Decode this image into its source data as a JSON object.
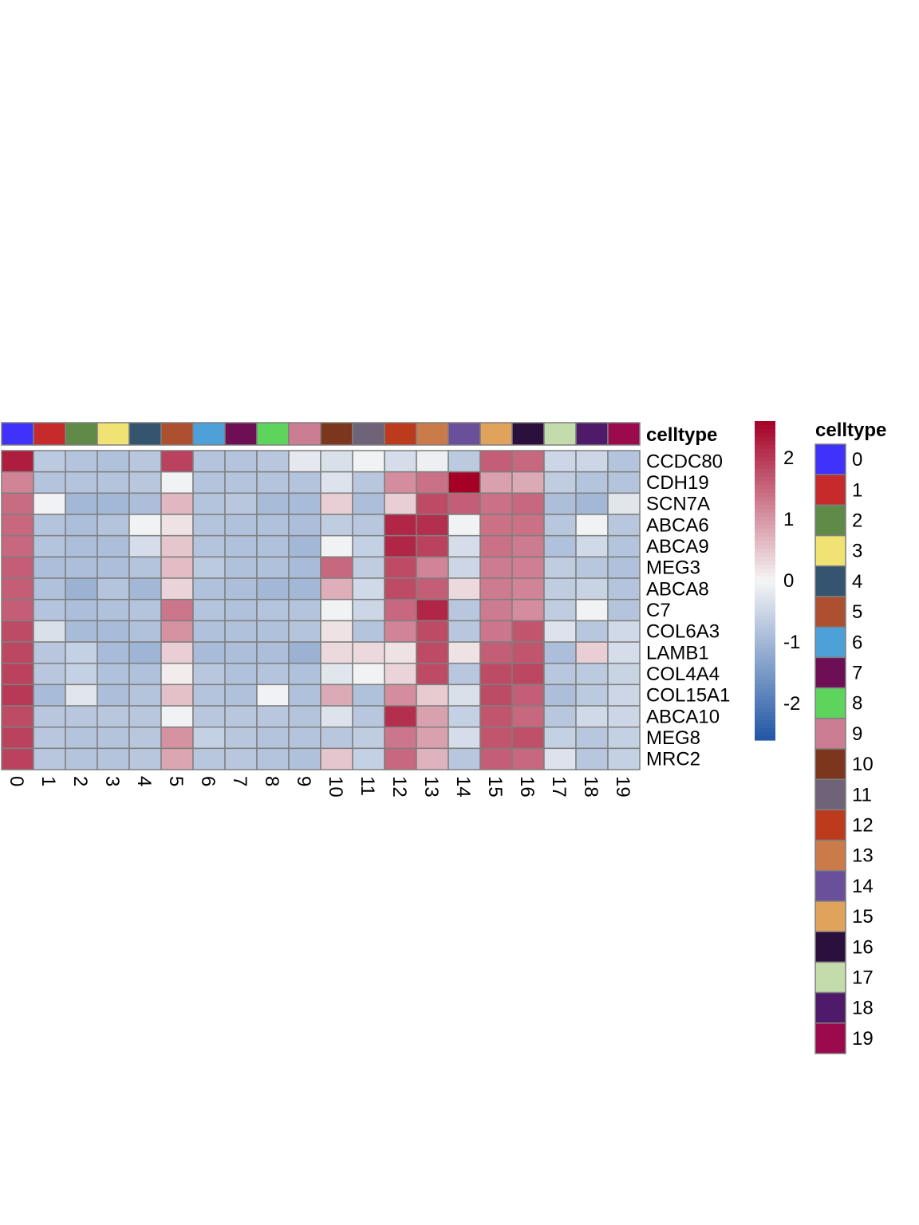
{
  "chart_data": {
    "type": "heatmap",
    "columns": [
      "0",
      "1",
      "2",
      "3",
      "4",
      "5",
      "6",
      "7",
      "8",
      "9",
      "10",
      "11",
      "12",
      "13",
      "14",
      "15",
      "16",
      "17",
      "18",
      "19"
    ],
    "rows": [
      "CCDC80",
      "CDH19",
      "SCN7A",
      "ABCA6",
      "ABCA9",
      "MEG3",
      "ABCA8",
      "C7",
      "COL6A3",
      "LAMB1",
      "COL4A4",
      "COL15A1",
      "ABCA10",
      "MEG8",
      "MRC2"
    ],
    "values": [
      [
        2.3,
        -0.7,
        -0.8,
        -0.85,
        -0.75,
        1.9,
        -0.8,
        -0.8,
        -0.75,
        -0.2,
        -0.35,
        -0.05,
        -0.4,
        -0.1,
        -0.7,
        1.6,
        1.5,
        -0.5,
        -0.5,
        -0.8
      ],
      [
        1.2,
        -0.8,
        -0.8,
        -0.8,
        -0.75,
        -0.05,
        -0.8,
        -0.8,
        -0.8,
        -0.8,
        -0.3,
        -0.75,
        1.1,
        1.4,
        2.6,
        0.9,
        0.8,
        -0.65,
        -0.8,
        -0.8
      ],
      [
        1.45,
        -0.05,
        -1.0,
        -1.0,
        -0.9,
        0.65,
        -0.8,
        -0.75,
        -0.95,
        -0.95,
        0.4,
        -0.9,
        0.4,
        1.8,
        1.6,
        1.4,
        1.5,
        -0.9,
        -1.0,
        -0.25
      ],
      [
        1.5,
        -0.8,
        -0.9,
        -0.8,
        -0.05,
        0.2,
        -0.8,
        -0.85,
        -0.85,
        -0.9,
        -0.65,
        -0.75,
        2.2,
        2.1,
        -0.05,
        1.4,
        1.4,
        -0.75,
        -0.05,
        -0.75
      ],
      [
        1.5,
        -0.8,
        -0.9,
        -0.9,
        -0.4,
        0.5,
        -0.8,
        -0.85,
        -0.85,
        -1.0,
        -0.05,
        -0.6,
        2.2,
        1.9,
        -0.4,
        1.4,
        1.3,
        -0.85,
        -0.45,
        -0.8
      ],
      [
        1.6,
        -0.9,
        -0.9,
        -0.9,
        -0.8,
        0.6,
        -0.7,
        -0.85,
        -0.85,
        -0.95,
        1.5,
        -0.65,
        1.8,
        1.2,
        -0.5,
        1.3,
        1.25,
        -0.65,
        -0.75,
        -0.85
      ],
      [
        1.6,
        -0.85,
        -1.1,
        -0.8,
        -1.0,
        0.35,
        -0.85,
        -0.9,
        -1.0,
        -1.0,
        0.75,
        -0.45,
        1.8,
        1.6,
        0.3,
        1.3,
        1.2,
        -0.65,
        -0.55,
        -0.8
      ],
      [
        1.6,
        -0.8,
        -0.9,
        -0.85,
        -0.8,
        1.35,
        -0.8,
        -0.85,
        -0.8,
        -0.8,
        -0.05,
        -0.5,
        1.5,
        2.2,
        -0.75,
        1.3,
        1.1,
        -0.65,
        -0.05,
        -0.8
      ],
      [
        1.8,
        -0.35,
        -0.95,
        -0.95,
        -0.85,
        1.05,
        -0.85,
        -0.85,
        -0.85,
        -0.8,
        0.2,
        -0.8,
        1.2,
        1.8,
        -0.75,
        1.35,
        1.7,
        -0.3,
        -0.75,
        -0.45
      ],
      [
        1.85,
        -0.75,
        -0.6,
        -0.95,
        -1.05,
        0.4,
        -0.95,
        -0.9,
        -0.9,
        -1.1,
        0.3,
        0.3,
        0.2,
        1.8,
        0.2,
        1.6,
        1.7,
        -0.9,
        0.4,
        -0.4
      ],
      [
        1.9,
        -0.75,
        -0.6,
        -0.85,
        -0.85,
        0.1,
        -0.75,
        -0.85,
        -0.8,
        -0.85,
        -0.25,
        -0.05,
        0.35,
        1.8,
        -0.75,
        1.8,
        1.85,
        -0.75,
        -0.7,
        -0.55
      ],
      [
        2.0,
        -0.95,
        -0.25,
        -0.9,
        -0.8,
        0.55,
        -0.8,
        -0.85,
        -0.05,
        -0.85,
        0.8,
        -0.85,
        1.1,
        0.45,
        -0.35,
        1.8,
        1.6,
        -0.9,
        -0.7,
        -0.5
      ],
      [
        1.8,
        -0.75,
        -0.75,
        -0.75,
        -0.75,
        -0.05,
        -0.75,
        -0.75,
        -0.75,
        -0.8,
        -0.3,
        -0.75,
        2.1,
        0.9,
        -0.6,
        1.7,
        1.5,
        -0.75,
        -0.45,
        -0.5
      ],
      [
        1.9,
        -0.75,
        -0.8,
        -0.8,
        -0.75,
        1.05,
        -0.6,
        -0.75,
        -0.8,
        -0.8,
        -0.75,
        -0.65,
        1.35,
        0.9,
        -0.4,
        1.7,
        1.75,
        -0.6,
        -0.75,
        -0.6
      ],
      [
        1.9,
        -0.75,
        -0.8,
        -0.8,
        -0.75,
        0.85,
        -0.75,
        -0.75,
        -0.8,
        -0.85,
        0.5,
        -0.6,
        1.5,
        0.7,
        -0.75,
        1.6,
        1.5,
        -0.3,
        -0.75,
        -0.6
      ]
    ],
    "color_scale": {
      "min": -2.6,
      "max": 2.6,
      "low_color": "#2156a5",
      "mid_color": "#f5f5f5",
      "high_color": "#a50026",
      "ticks": [
        2,
        1,
        0,
        -1,
        -2
      ],
      "tick_labels": [
        "2",
        "1",
        "0",
        "-1",
        "-2"
      ]
    },
    "annotation": {
      "title": "celltype",
      "legend_title": "celltype",
      "labels": [
        "0",
        "1",
        "2",
        "3",
        "4",
        "5",
        "6",
        "7",
        "8",
        "9",
        "10",
        "11",
        "12",
        "13",
        "14",
        "15",
        "16",
        "17",
        "18",
        "19"
      ],
      "colors": [
        "#4132fb",
        "#c62a2a",
        "#5f8a48",
        "#f0e273",
        "#345470",
        "#ac5030",
        "#4da1d8",
        "#6e0f55",
        "#5dd45b",
        "#cb7d93",
        "#7c361d",
        "#6e6378",
        "#bc3b1d",
        "#cb7b4a",
        "#6a4f9a",
        "#dfa35b",
        "#2b0f3d",
        "#c4dcab",
        "#4e1a69",
        "#9b0a4c"
      ]
    }
  }
}
